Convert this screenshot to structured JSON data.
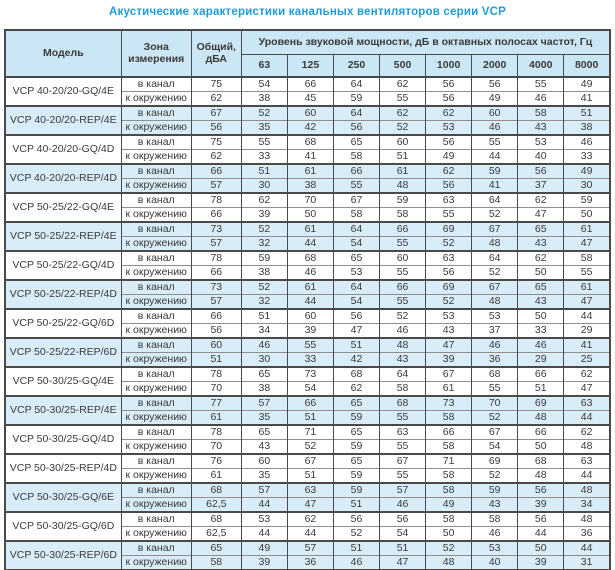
{
  "title": "Акустические характеристики канальных вентиляторов  серии VCP",
  "colors": {
    "title_text": "#1f9cd8",
    "header_background": "#cbe6f4",
    "highlight_row_background": "#d8edf8",
    "border_dark": "#4a4a4a",
    "border_light": "#8f8f8f",
    "body_text": "#3a3a3a"
  },
  "table": {
    "headers": {
      "model": "Модель",
      "zone": "Зона измерения",
      "total": "Общий, дБА",
      "freq_group": "Уровень звуковой мощности, дБ в октавных полосах частот, Гц",
      "frequencies": [
        "63",
        "125",
        "250",
        "500",
        "1000",
        "2000",
        "4000",
        "8000"
      ]
    },
    "zone_in_label": "в канал",
    "zone_out_label": "к окружению",
    "rows": [
      {
        "model": "VCP 40-20/20-GQ/4E",
        "highlight": false,
        "in": {
          "total": "75",
          "values": [
            "54",
            "66",
            "64",
            "62",
            "56",
            "56",
            "55",
            "49"
          ]
        },
        "out": {
          "total": "62",
          "values": [
            "38",
            "45",
            "59",
            "55",
            "56",
            "49",
            "46",
            "41"
          ]
        }
      },
      {
        "model": "VCP 40-20/20-REP/4E",
        "highlight": true,
        "in": {
          "total": "67",
          "values": [
            "52",
            "60",
            "64",
            "62",
            "62",
            "60",
            "58",
            "51"
          ]
        },
        "out": {
          "total": "56",
          "values": [
            "35",
            "42",
            "56",
            "52",
            "53",
            "46",
            "43",
            "38"
          ]
        }
      },
      {
        "model": "VCP 40-20/20-GQ/4D",
        "highlight": false,
        "in": {
          "total": "75",
          "values": [
            "55",
            "68",
            "65",
            "60",
            "56",
            "55",
            "53",
            "46"
          ]
        },
        "out": {
          "total": "62",
          "values": [
            "33",
            "41",
            "58",
            "51",
            "49",
            "44",
            "40",
            "33"
          ]
        }
      },
      {
        "model": "VCP 40-20/20-REP/4D",
        "highlight": true,
        "in": {
          "total": "66",
          "values": [
            "51",
            "61",
            "66",
            "61",
            "62",
            "59",
            "56",
            "49"
          ]
        },
        "out": {
          "total": "57",
          "values": [
            "30",
            "38",
            "55",
            "48",
            "56",
            "41",
            "37",
            "30"
          ]
        }
      },
      {
        "model": "VCP 50-25/22-GQ/4E",
        "highlight": false,
        "in": {
          "total": "78",
          "values": [
            "62",
            "70",
            "67",
            "59",
            "63",
            "64",
            "62",
            "59"
          ]
        },
        "out": {
          "total": "66",
          "values": [
            "39",
            "50",
            "58",
            "58",
            "55",
            "52",
            "47",
            "50"
          ]
        }
      },
      {
        "model": "VCP 50-25/22-REP/4E",
        "highlight": true,
        "in": {
          "total": "73",
          "values": [
            "52",
            "61",
            "64",
            "66",
            "69",
            "67",
            "65",
            "61"
          ]
        },
        "out": {
          "total": "57",
          "values": [
            "32",
            "44",
            "54",
            "55",
            "52",
            "48",
            "43",
            "47"
          ]
        }
      },
      {
        "model": "VCP 50-25/22-GQ/4D",
        "highlight": false,
        "in": {
          "total": "78",
          "values": [
            "59",
            "68",
            "65",
            "60",
            "63",
            "64",
            "62",
            "58"
          ]
        },
        "out": {
          "total": "66",
          "values": [
            "38",
            "46",
            "53",
            "55",
            "56",
            "52",
            "50",
            "55"
          ]
        }
      },
      {
        "model": "VCP 50-25/22-REP/4D",
        "highlight": true,
        "in": {
          "total": "73",
          "values": [
            "52",
            "61",
            "64",
            "66",
            "69",
            "67",
            "65",
            "61"
          ]
        },
        "out": {
          "total": "57",
          "values": [
            "32",
            "44",
            "54",
            "55",
            "52",
            "48",
            "43",
            "47"
          ]
        }
      },
      {
        "model": "VCP 50-25/22-GQ/6D",
        "highlight": false,
        "in": {
          "total": "66",
          "values": [
            "51",
            "60",
            "56",
            "52",
            "53",
            "53",
            "50",
            "44"
          ]
        },
        "out": {
          "total": "56",
          "values": [
            "34",
            "39",
            "47",
            "46",
            "43",
            "37",
            "33",
            "29"
          ]
        }
      },
      {
        "model": "VCP 50-25/22-REP/6D",
        "highlight": true,
        "in": {
          "total": "60",
          "values": [
            "46",
            "55",
            "51",
            "48",
            "47",
            "46",
            "46",
            "41"
          ]
        },
        "out": {
          "total": "51",
          "values": [
            "30",
            "33",
            "42",
            "43",
            "39",
            "36",
            "29",
            "25"
          ]
        }
      },
      {
        "model": "VCP 50-30/25-GQ/4E",
        "highlight": false,
        "in": {
          "total": "78",
          "values": [
            "65",
            "73",
            "68",
            "64",
            "67",
            "68",
            "66",
            "62"
          ]
        },
        "out": {
          "total": "70",
          "values": [
            "38",
            "54",
            "62",
            "58",
            "61",
            "55",
            "51",
            "47"
          ]
        }
      },
      {
        "model": "VCP 50-30/25-REP/4E",
        "highlight": true,
        "in": {
          "total": "77",
          "values": [
            "57",
            "66",
            "65",
            "68",
            "73",
            "70",
            "69",
            "63"
          ]
        },
        "out": {
          "total": "61",
          "values": [
            "35",
            "51",
            "59",
            "55",
            "58",
            "52",
            "48",
            "44"
          ]
        }
      },
      {
        "model": "VCP 50-30/25-GQ/4D",
        "highlight": false,
        "in": {
          "total": "78",
          "values": [
            "65",
            "71",
            "65",
            "63",
            "66",
            "67",
            "66",
            "62"
          ]
        },
        "out": {
          "total": "70",
          "values": [
            "43",
            "52",
            "59",
            "55",
            "58",
            "54",
            "50",
            "48"
          ]
        }
      },
      {
        "model": "VCP 50-30/25-REP/4D",
        "highlight": false,
        "in": {
          "total": "76",
          "values": [
            "60",
            "67",
            "65",
            "67",
            "71",
            "69",
            "68",
            "63"
          ]
        },
        "out": {
          "total": "61",
          "values": [
            "35",
            "51",
            "59",
            "55",
            "58",
            "52",
            "48",
            "44"
          ]
        }
      },
      {
        "model": "VCP 50-30/25-GQ/6E",
        "highlight": true,
        "in": {
          "total": "68",
          "values": [
            "57",
            "63",
            "59",
            "57",
            "58",
            "59",
            "56",
            "48"
          ]
        },
        "out": {
          "total": "62,5",
          "values": [
            "44",
            "47",
            "51",
            "46",
            "49",
            "43",
            "39",
            "34"
          ]
        }
      },
      {
        "model": "VCP 50-30/25-GQ/6D",
        "highlight": false,
        "in": {
          "total": "68",
          "values": [
            "53",
            "62",
            "56",
            "56",
            "58",
            "58",
            "56",
            "48"
          ]
        },
        "out": {
          "total": "62,5",
          "values": [
            "44",
            "44",
            "52",
            "54",
            "50",
            "46",
            "44",
            "36"
          ]
        }
      },
      {
        "model": "VCP 50-30/25-REP/6D",
        "highlight": true,
        "in": {
          "total": "65",
          "values": [
            "49",
            "57",
            "51",
            "51",
            "52",
            "53",
            "50",
            "44"
          ]
        },
        "out": {
          "total": "58",
          "values": [
            "39",
            "36",
            "46",
            "47",
            "48",
            "40",
            "39",
            "31"
          ]
        }
      }
    ]
  }
}
